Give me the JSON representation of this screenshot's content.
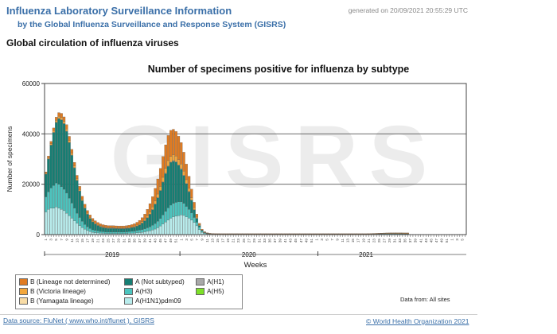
{
  "header": {
    "title": "Influenza Laboratory Surveillance Information",
    "subtitle": "by the Global Influenza Surveillance and Response System (GISRS)",
    "generated": "generated on 20/09/2021 20:55:29 UTC"
  },
  "section_title": "Global circulation of influenza viruses",
  "watermark": "GISRS",
  "data_from": "Data from: All sites",
  "footer": {
    "source_link": "Data source: FluNet ( www.who.int/flunet ), GISRS",
    "copyright_link": "© World Health Organization 2021"
  },
  "chart_data": {
    "type": "bar",
    "stacked": true,
    "title": "Number of specimens positive for influenza by subtype",
    "xlabel": "Weeks",
    "ylabel": "Number of specimens",
    "ylim": [
      0,
      60000
    ],
    "yticks": [
      0,
      20000,
      40000,
      60000
    ],
    "grid": true,
    "x_start_week": 1,
    "year_groups": [
      {
        "label": "2019",
        "weeks": 52
      },
      {
        "label": "2020",
        "weeks": 53
      },
      {
        "label": "2021",
        "weeks": 37
      }
    ],
    "legend": [
      {
        "key": "b_lineage_nd",
        "label": "B (Lineage not determined)",
        "color": "#e07b21"
      },
      {
        "key": "b_victoria",
        "label": "B (Victoria lineage)",
        "color": "#f3a73c"
      },
      {
        "key": "b_yamagata",
        "label": "B (Yamagata lineage)",
        "color": "#f8dca6"
      },
      {
        "key": "a_not_subtyped",
        "label": "A (Not subtyped)",
        "color": "#167e73"
      },
      {
        "key": "a_h3",
        "label": "A(H3)",
        "color": "#4cc4be"
      },
      {
        "key": "a_h1n1pdm09",
        "label": "A(H1N1)pdm09",
        "color": "#b8ecec"
      },
      {
        "key": "a_h1",
        "label": "A(H1)",
        "color": "#a8a8a8"
      },
      {
        "key": "a_h5",
        "label": "A(H5)",
        "color": "#7de028"
      }
    ],
    "series": [
      {
        "key": "a_h1n1pdm09",
        "values": [
          9000,
          10000,
          10500,
          10500,
          11000,
          10500,
          10000,
          9500,
          8500,
          7500,
          6500,
          5500,
          4500,
          3600,
          2800,
          2100,
          1600,
          1200,
          900,
          750,
          650,
          550,
          500,
          450,
          420,
          420,
          420,
          400,
          420,
          420,
          420,
          450,
          500,
          550,
          600,
          700,
          800,
          900,
          1100,
          1300,
          1500,
          1800,
          2200,
          2700,
          3400,
          4200,
          5000,
          5800,
          6500,
          7000,
          7300,
          7500,
          7800,
          7600,
          7000,
          6500,
          5800,
          4800,
          3500,
          2000,
          900,
          400,
          250,
          150,
          120,
          100,
          100,
          90,
          90,
          90,
          90,
          90,
          90,
          90,
          90,
          90,
          90,
          90,
          90,
          90,
          90,
          90,
          90,
          90,
          90,
          90,
          90,
          90,
          90,
          90,
          90,
          90,
          90,
          90,
          90,
          90,
          90,
          90,
          90,
          90,
          90,
          90,
          90,
          90,
          90,
          90,
          90,
          90,
          90,
          90,
          90,
          90,
          90,
          90,
          90,
          90,
          90,
          90,
          90,
          90,
          90,
          90,
          90,
          90,
          90,
          100,
          110,
          120,
          130,
          140,
          150,
          150,
          150,
          150,
          160,
          160,
          160,
          150,
          150,
          150
        ]
      },
      {
        "key": "a_h3",
        "values": [
          6000,
          7000,
          8000,
          9000,
          9500,
          9500,
          9000,
          8500,
          8000,
          7000,
          6000,
          5000,
          4000,
          3200,
          2500,
          1900,
          1500,
          1200,
          1000,
          900,
          800,
          700,
          650,
          600,
          600,
          600,
          600,
          600,
          600,
          600,
          600,
          650,
          700,
          750,
          800,
          900,
          1000,
          1100,
          1200,
          1400,
          1600,
          1900,
          2200,
          2600,
          3000,
          3600,
          4200,
          4800,
          5200,
          5400,
          5500,
          5500,
          5200,
          4800,
          4200,
          3500,
          2800,
          2000,
          1400,
          900,
          500,
          300,
          180,
          140,
          120,
          110,
          100,
          100,
          100,
          100,
          100,
          100,
          100,
          100,
          100,
          100,
          100,
          100,
          100,
          100,
          100,
          100,
          100,
          100,
          100,
          100,
          100,
          100,
          100,
          100,
          100,
          100,
          100,
          100,
          100,
          100,
          100,
          100,
          100,
          100,
          100,
          100,
          100,
          100,
          100,
          100,
          100,
          100,
          100,
          100,
          100,
          100,
          100,
          100,
          100,
          100,
          100,
          100,
          100,
          100,
          100,
          100,
          100,
          100,
          110,
          120,
          130,
          140,
          150,
          160,
          160,
          170,
          170,
          170,
          160,
          160,
          160,
          160,
          150,
          150
        ]
      },
      {
        "key": "a_not_subtyped",
        "values": [
          9000,
          13000,
          17000,
          21000,
          24000,
          26000,
          26500,
          26000,
          24500,
          22000,
          19000,
          16000,
          13000,
          10500,
          8200,
          6500,
          5000,
          4000,
          3200,
          2600,
          2200,
          1900,
          1700,
          1600,
          1500,
          1500,
          1500,
          1450,
          1400,
          1400,
          1400,
          1400,
          1400,
          1500,
          1600,
          1800,
          2100,
          2600,
          3200,
          4000,
          5000,
          6200,
          7700,
          9300,
          11000,
          13000,
          15000,
          16500,
          17000,
          16800,
          16000,
          14500,
          13000,
          11000,
          9000,
          7000,
          5000,
          3000,
          1500,
          700,
          300,
          200,
          140,
          100,
          90,
          80,
          80,
          80,
          80,
          80,
          80,
          80,
          80,
          80,
          80,
          80,
          80,
          80,
          80,
          80,
          80,
          80,
          80,
          80,
          80,
          80,
          80,
          80,
          80,
          80,
          80,
          80,
          80,
          80,
          80,
          80,
          80,
          80,
          80,
          80,
          80,
          80,
          80,
          80,
          80,
          80,
          80,
          80,
          80,
          80,
          80,
          80,
          80,
          80,
          80,
          80,
          80,
          80,
          80,
          80,
          80,
          80,
          80,
          80,
          90,
          100,
          110,
          120,
          130,
          140,
          150,
          160,
          170,
          170,
          170,
          160,
          160,
          160,
          150,
          150
        ]
      },
      {
        "key": "a_h1",
        "values": [
          0,
          0,
          0,
          0,
          0,
          0,
          0,
          0,
          0,
          0,
          0,
          0,
          0,
          0,
          0,
          0,
          0,
          0,
          0,
          0,
          0,
          0,
          0,
          0,
          0,
          0,
          0,
          0,
          0,
          0,
          0,
          0,
          0,
          0,
          0,
          0,
          0,
          0,
          0,
          0,
          0,
          0,
          0,
          0,
          0,
          0,
          0,
          0,
          0,
          0,
          0,
          0,
          0,
          0,
          0,
          0,
          0,
          0,
          0,
          0,
          0,
          0,
          0,
          0,
          0,
          0,
          0,
          0,
          0,
          0,
          0,
          0,
          0,
          0,
          0,
          0,
          0,
          0,
          0,
          0,
          0,
          0,
          0,
          0,
          0,
          0,
          0,
          0,
          0,
          0,
          0,
          0,
          0,
          0,
          0,
          0,
          0,
          0,
          0,
          0,
          0,
          0,
          0,
          0,
          0,
          0,
          0,
          0,
          0,
          0,
          0,
          0,
          0,
          0,
          0,
          0,
          0,
          0,
          0,
          0,
          0,
          0,
          0,
          0,
          0,
          0,
          0,
          0,
          0,
          0,
          0,
          0,
          0,
          0,
          0,
          0,
          0,
          0,
          0,
          0,
          0,
          0
        ]
      },
      {
        "key": "a_h5",
        "values": [
          0,
          0,
          0,
          0,
          0,
          0,
          0,
          0,
          0,
          0,
          0,
          0,
          0,
          0,
          0,
          0,
          0,
          0,
          0,
          0,
          0,
          0,
          0,
          0,
          0,
          0,
          0,
          0,
          0,
          0,
          0,
          0,
          0,
          0,
          0,
          0,
          0,
          0,
          0,
          0,
          0,
          0,
          0,
          0,
          0,
          0,
          0,
          0,
          0,
          0,
          0,
          0,
          0,
          0,
          0,
          0,
          0,
          0,
          0,
          0,
          0,
          0,
          0,
          0,
          0,
          0,
          0,
          0,
          0,
          0,
          0,
          0,
          0,
          0,
          0,
          0,
          0,
          0,
          0,
          0,
          0,
          0,
          0,
          0,
          0,
          0,
          0,
          0,
          0,
          0,
          0,
          0,
          0,
          0,
          0,
          0,
          0,
          0,
          0,
          0,
          0,
          0,
          0,
          0,
          0,
          0,
          0,
          0,
          0,
          0,
          0,
          0,
          0,
          0,
          0,
          0,
          0,
          0,
          0,
          0,
          0,
          0,
          0,
          0,
          0,
          0,
          0,
          0,
          0,
          0,
          0,
          0,
          0,
          0,
          0,
          0,
          0,
          0,
          0,
          0,
          0,
          0
        ]
      },
      {
        "key": "b_yamagata",
        "values": [
          100,
          100,
          120,
          150,
          150,
          150,
          150,
          150,
          130,
          120,
          100,
          100,
          80,
          70,
          60,
          50,
          40,
          40,
          40,
          30,
          30,
          30,
          30,
          30,
          30,
          30,
          30,
          30,
          30,
          30,
          30,
          30,
          30,
          30,
          30,
          30,
          30,
          30,
          30,
          40,
          50,
          60,
          80,
          100,
          120,
          140,
          160,
          180,
          200,
          220,
          240,
          250,
          240,
          220,
          200,
          180,
          150,
          120,
          80,
          50,
          30,
          20,
          10,
          10,
          10,
          10,
          10,
          10,
          10,
          10,
          10,
          10,
          10,
          10,
          10,
          10,
          10,
          10,
          10,
          10,
          10,
          10,
          10,
          10,
          10,
          10,
          10,
          10,
          10,
          10,
          10,
          10,
          10,
          10,
          10,
          10,
          10,
          10,
          10,
          10,
          10,
          10,
          10,
          10,
          10,
          10,
          10,
          10,
          10,
          10,
          10,
          10,
          10,
          10,
          10,
          10,
          10,
          10,
          10,
          10,
          10,
          10,
          10,
          10,
          10,
          10,
          10,
          10,
          10,
          10,
          10,
          10,
          10,
          10,
          10,
          10,
          10,
          10,
          10,
          10,
          10,
          10
        ]
      },
      {
        "key": "b_victoria",
        "values": [
          300,
          400,
          500,
          600,
          700,
          800,
          800,
          800,
          750,
          700,
          650,
          600,
          550,
          500,
          450,
          400,
          380,
          360,
          340,
          320,
          300,
          290,
          280,
          270,
          270,
          260,
          260,
          250,
          250,
          250,
          250,
          260,
          270,
          290,
          320,
          360,
          420,
          500,
          600,
          700,
          850,
          1000,
          1200,
          1400,
          1600,
          1800,
          2000,
          2100,
          2200,
          2200,
          2100,
          2000,
          1800,
          1600,
          1400,
          1200,
          900,
          700,
          450,
          250,
          120,
          70,
          40,
          30,
          20,
          20,
          20,
          20,
          20,
          20,
          20,
          20,
          20,
          20,
          20,
          20,
          20,
          20,
          20,
          20,
          20,
          20,
          20,
          20,
          20,
          20,
          20,
          20,
          20,
          20,
          20,
          20,
          20,
          20,
          20,
          20,
          20,
          20,
          20,
          20,
          20,
          20,
          20,
          20,
          20,
          20,
          20,
          20,
          20,
          20,
          20,
          20,
          20,
          20,
          20,
          20,
          20,
          20,
          20,
          20,
          20,
          20,
          20,
          20,
          20,
          20,
          20,
          20,
          30,
          30,
          40,
          40,
          40,
          40,
          40,
          40,
          40,
          40,
          40,
          40
        ]
      },
      {
        "key": "b_lineage_nd",
        "values": [
          500,
          700,
          900,
          1100,
          1300,
          1500,
          1700,
          1800,
          1800,
          1700,
          1600,
          1500,
          1400,
          1300,
          1200,
          1100,
          1050,
          1000,
          950,
          900,
          850,
          800,
          780,
          760,
          750,
          740,
          740,
          730,
          730,
          730,
          740,
          760,
          800,
          850,
          950,
          1100,
          1300,
          1600,
          2000,
          2600,
          3300,
          4100,
          5000,
          6000,
          7200,
          8300,
          9300,
          10000,
          10300,
          10200,
          9800,
          9300,
          8500,
          7500,
          6200,
          4800,
          3400,
          2200,
          1200,
          600,
          300,
          150,
          100,
          80,
          70,
          70,
          70,
          70,
          70,
          70,
          70,
          70,
          70,
          70,
          70,
          70,
          70,
          70,
          70,
          70,
          70,
          70,
          70,
          70,
          70,
          70,
          70,
          70,
          70,
          70,
          70,
          70,
          70,
          70,
          70,
          70,
          70,
          70,
          70,
          70,
          70,
          70,
          70,
          70,
          70,
          70,
          70,
          70,
          70,
          70,
          70,
          70,
          70,
          70,
          70,
          70,
          70,
          70,
          70,
          70,
          70,
          70,
          70,
          70,
          70,
          70,
          80,
          90,
          100,
          110,
          120,
          130,
          140,
          150,
          160,
          170,
          170,
          170,
          170,
          170,
          170,
          170
        ]
      }
    ]
  }
}
